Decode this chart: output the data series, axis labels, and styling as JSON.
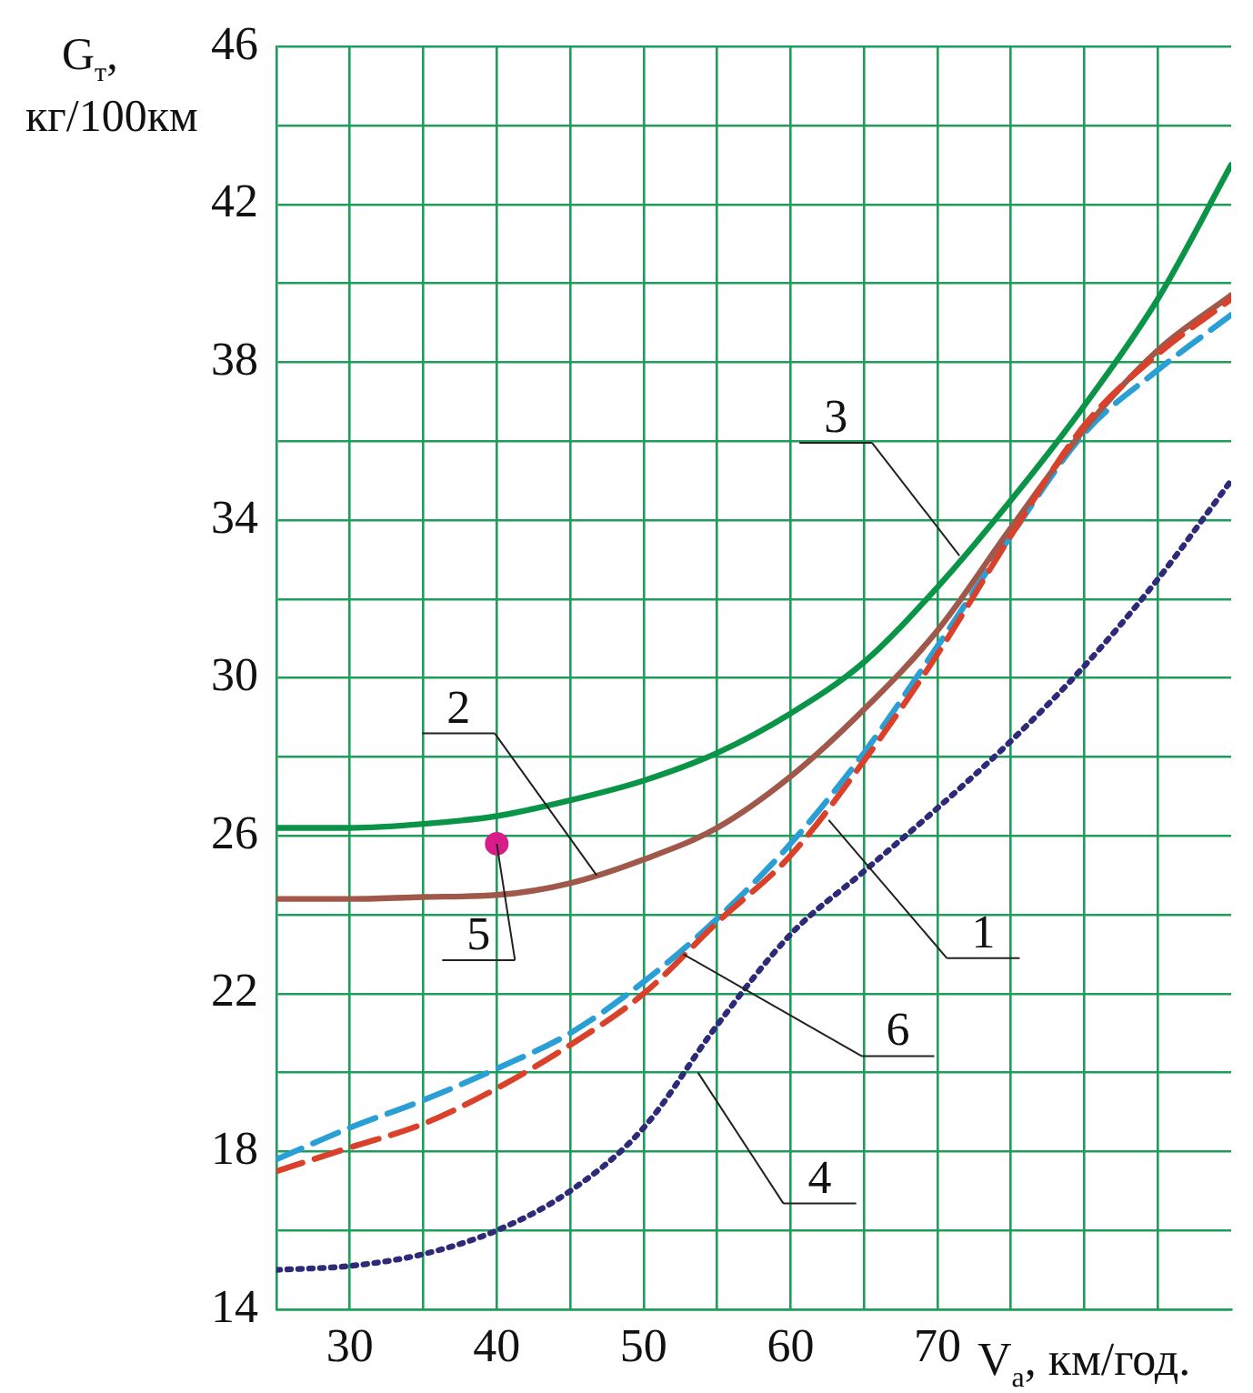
{
  "chart_data": {
    "type": "line",
    "xlabel": "V$_{a}$, км/год.",
    "ylabel": "G$_{т}$, кг/100км",
    "x": [
      25,
      30,
      35,
      40,
      45,
      50,
      55,
      60,
      65,
      70,
      75,
      80,
      85,
      90
    ],
    "series": [
      {
        "type": "line",
        "color": "#d9412b",
        "line_style": "dashed",
        "marker": "none",
        "values": [
          17.5,
          18.1,
          18.7,
          19.6,
          20.7,
          22.0,
          23.8,
          25.5,
          27.9,
          30.6,
          33.6,
          36.4,
          38.2,
          39.6
        ]
      },
      {
        "type": "line",
        "color": "#a0584a",
        "line_style": "solid",
        "marker": "none",
        "values": [
          24.4,
          24.4,
          24.45,
          24.5,
          24.8,
          25.4,
          26.2,
          27.5,
          29.2,
          31.2,
          33.8,
          36.3,
          38.3,
          39.7
        ]
      },
      {
        "type": "line",
        "color": "#0a9447",
        "line_style": "solid",
        "marker": "none",
        "values": [
          26.2,
          26.2,
          26.3,
          26.5,
          26.9,
          27.4,
          28.1,
          29.1,
          30.4,
          32.3,
          34.5,
          36.9,
          39.6,
          43.0
        ]
      },
      {
        "type": "line",
        "color": "#2e2a7a",
        "line_style": "dotted",
        "marker": "none",
        "values": [
          15.0,
          15.1,
          15.4,
          16.0,
          17.0,
          18.6,
          21.2,
          23.5,
          25.1,
          26.7,
          28.4,
          30.3,
          32.5,
          35.0
        ]
      },
      {
        "type": "scatter",
        "color": "#d61d8a",
        "marker": "circle",
        "x": [
          40
        ],
        "values": [
          25.8
        ]
      },
      {
        "type": "line",
        "color": "#2a9fd6",
        "line_style": "dashed",
        "marker": "none",
        "values": [
          17.8,
          18.6,
          19.3,
          20.1,
          21.0,
          22.3,
          23.9,
          25.8,
          28.1,
          30.8,
          33.6,
          36.2,
          37.8,
          39.2
        ]
      }
    ],
    "annotations": [
      {
        "text": "1",
        "x": 62.6,
        "y": 26.4
      },
      {
        "text": "2",
        "x": 46.8,
        "y": 25.0
      },
      {
        "text": "3",
        "x": 71.5,
        "y": 33.1
      },
      {
        "text": "4",
        "x": 53.7,
        "y": 20.0
      },
      {
        "text": "5",
        "x": 40,
        "y": 25.8
      },
      {
        "text": "6",
        "x": 52.7,
        "y": 23.0
      }
    ],
    "xlim": [
      25,
      90
    ],
    "xticks": [
      30,
      {
        "value": 35,
        "label": null
      },
      40,
      {
        "value": 45,
        "label": null
      },
      50,
      {
        "value": 55,
        "label": null
      },
      60,
      {
        "value": 65,
        "label": null
      },
      70,
      {
        "value": 75,
        "label": null
      },
      {
        "value": 80,
        "label": null
      },
      {
        "value": 85,
        "label": null
      }
    ],
    "ylim": [
      14,
      46
    ],
    "yticks": [
      14,
      {
        "value": 16,
        "label": null
      },
      18,
      {
        "value": 20,
        "label": null
      },
      22,
      {
        "value": 24,
        "label": null
      },
      26,
      {
        "value": 28,
        "label": null
      },
      30,
      {
        "value": 32,
        "label": null
      },
      34,
      {
        "value": 36,
        "label": null
      },
      38,
      {
        "value": 40,
        "label": null
      },
      42,
      {
        "value": 44,
        "label": null
      },
      46
    ],
    "grid": true,
    "legend": false
  }
}
